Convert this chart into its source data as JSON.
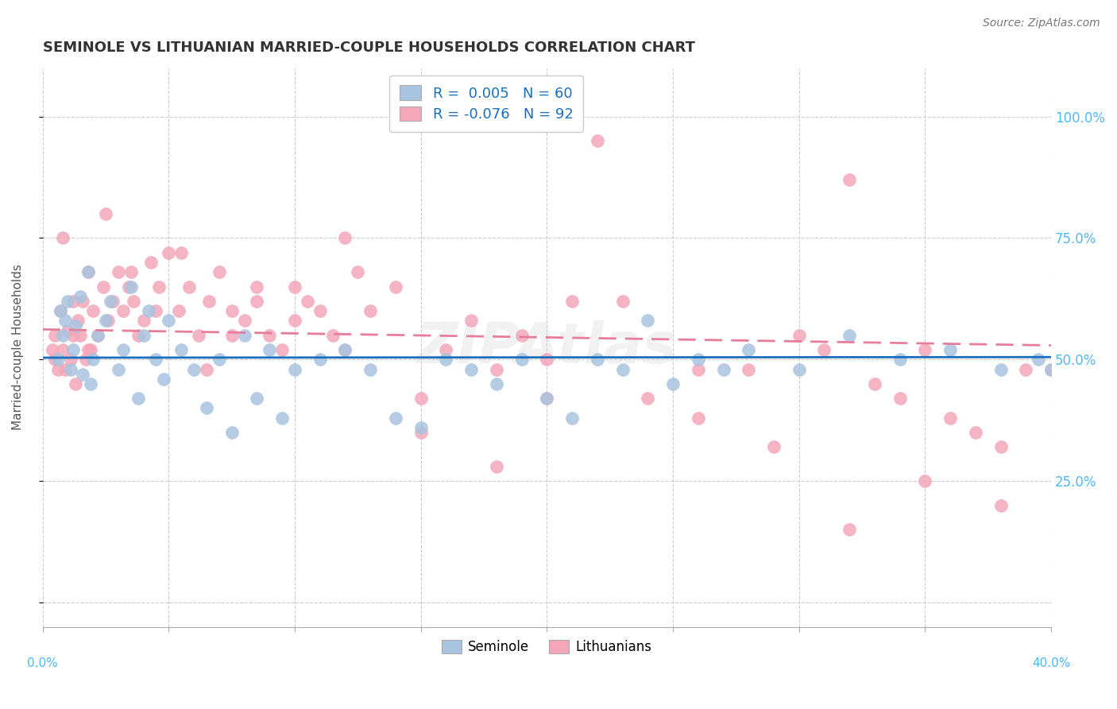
{
  "title": "SEMINOLE VS LITHUANIAN MARRIED-COUPLE HOUSEHOLDS CORRELATION CHART",
  "source": "Source: ZipAtlas.com",
  "ylabel": "Married-couple Households",
  "xlim": [
    0.0,
    0.4
  ],
  "ylim": [
    -0.05,
    1.1
  ],
  "seminole_R": 0.005,
  "seminole_N": 60,
  "lithuanian_R": -0.076,
  "lithuanian_N": 92,
  "seminole_color": "#a8c4e0",
  "lithuanian_color": "#f4a7b9",
  "seminole_line_color": "#1a6fbd",
  "lithuanian_line_color": "#e87d9a",
  "watermark": "ZIPAtlas",
  "seminole_x": [
    0.006,
    0.007,
    0.008,
    0.009,
    0.01,
    0.011,
    0.012,
    0.013,
    0.015,
    0.016,
    0.018,
    0.019,
    0.02,
    0.022,
    0.025,
    0.027,
    0.03,
    0.032,
    0.035,
    0.038,
    0.04,
    0.042,
    0.045,
    0.048,
    0.05,
    0.055,
    0.06,
    0.065,
    0.07,
    0.075,
    0.08,
    0.085,
    0.09,
    0.095,
    0.1,
    0.11,
    0.12,
    0.13,
    0.14,
    0.15,
    0.16,
    0.17,
    0.18,
    0.19,
    0.2,
    0.21,
    0.22,
    0.23,
    0.24,
    0.25,
    0.26,
    0.27,
    0.28,
    0.3,
    0.32,
    0.34,
    0.36,
    0.38,
    0.395,
    0.4
  ],
  "seminole_y": [
    0.5,
    0.6,
    0.55,
    0.58,
    0.62,
    0.48,
    0.52,
    0.57,
    0.63,
    0.47,
    0.68,
    0.45,
    0.5,
    0.55,
    0.58,
    0.62,
    0.48,
    0.52,
    0.65,
    0.42,
    0.55,
    0.6,
    0.5,
    0.46,
    0.58,
    0.52,
    0.48,
    0.4,
    0.5,
    0.35,
    0.55,
    0.42,
    0.52,
    0.38,
    0.48,
    0.5,
    0.52,
    0.48,
    0.38,
    0.36,
    0.5,
    0.48,
    0.45,
    0.5,
    0.42,
    0.38,
    0.5,
    0.48,
    0.58,
    0.45,
    0.5,
    0.48,
    0.52,
    0.48,
    0.55,
    0.5,
    0.52,
    0.48,
    0.5,
    0.48
  ],
  "lithuanian_x": [
    0.004,
    0.005,
    0.006,
    0.007,
    0.008,
    0.009,
    0.01,
    0.011,
    0.012,
    0.013,
    0.014,
    0.015,
    0.016,
    0.017,
    0.018,
    0.019,
    0.02,
    0.022,
    0.024,
    0.026,
    0.028,
    0.03,
    0.032,
    0.034,
    0.036,
    0.038,
    0.04,
    0.043,
    0.046,
    0.05,
    0.054,
    0.058,
    0.062,
    0.066,
    0.07,
    0.075,
    0.08,
    0.085,
    0.09,
    0.095,
    0.1,
    0.105,
    0.11,
    0.115,
    0.12,
    0.125,
    0.13,
    0.14,
    0.15,
    0.16,
    0.17,
    0.18,
    0.19,
    0.2,
    0.21,
    0.22,
    0.24,
    0.26,
    0.28,
    0.3,
    0.31,
    0.32,
    0.33,
    0.34,
    0.35,
    0.36,
    0.37,
    0.38,
    0.39,
    0.4,
    0.005,
    0.008,
    0.012,
    0.018,
    0.025,
    0.035,
    0.045,
    0.055,
    0.065,
    0.075,
    0.085,
    0.1,
    0.12,
    0.15,
    0.18,
    0.2,
    0.23,
    0.26,
    0.29,
    0.32,
    0.35,
    0.38
  ],
  "lithuanian_y": [
    0.52,
    0.55,
    0.48,
    0.6,
    0.52,
    0.48,
    0.56,
    0.5,
    0.62,
    0.45,
    0.58,
    0.55,
    0.62,
    0.5,
    0.68,
    0.52,
    0.6,
    0.55,
    0.65,
    0.58,
    0.62,
    0.68,
    0.6,
    0.65,
    0.62,
    0.55,
    0.58,
    0.7,
    0.65,
    0.72,
    0.6,
    0.65,
    0.55,
    0.62,
    0.68,
    0.6,
    0.58,
    0.65,
    0.55,
    0.52,
    0.58,
    0.62,
    0.6,
    0.55,
    0.75,
    0.68,
    0.6,
    0.65,
    0.42,
    0.52,
    0.58,
    0.48,
    0.55,
    0.5,
    0.62,
    0.95,
    0.42,
    0.38,
    0.48,
    0.55,
    0.52,
    0.87,
    0.45,
    0.42,
    0.52,
    0.38,
    0.35,
    0.32,
    0.48,
    0.48,
    0.5,
    0.75,
    0.55,
    0.52,
    0.8,
    0.68,
    0.6,
    0.72,
    0.48,
    0.55,
    0.62,
    0.65,
    0.52,
    0.35,
    0.28,
    0.42,
    0.62,
    0.48,
    0.32,
    0.15,
    0.25,
    0.2
  ]
}
